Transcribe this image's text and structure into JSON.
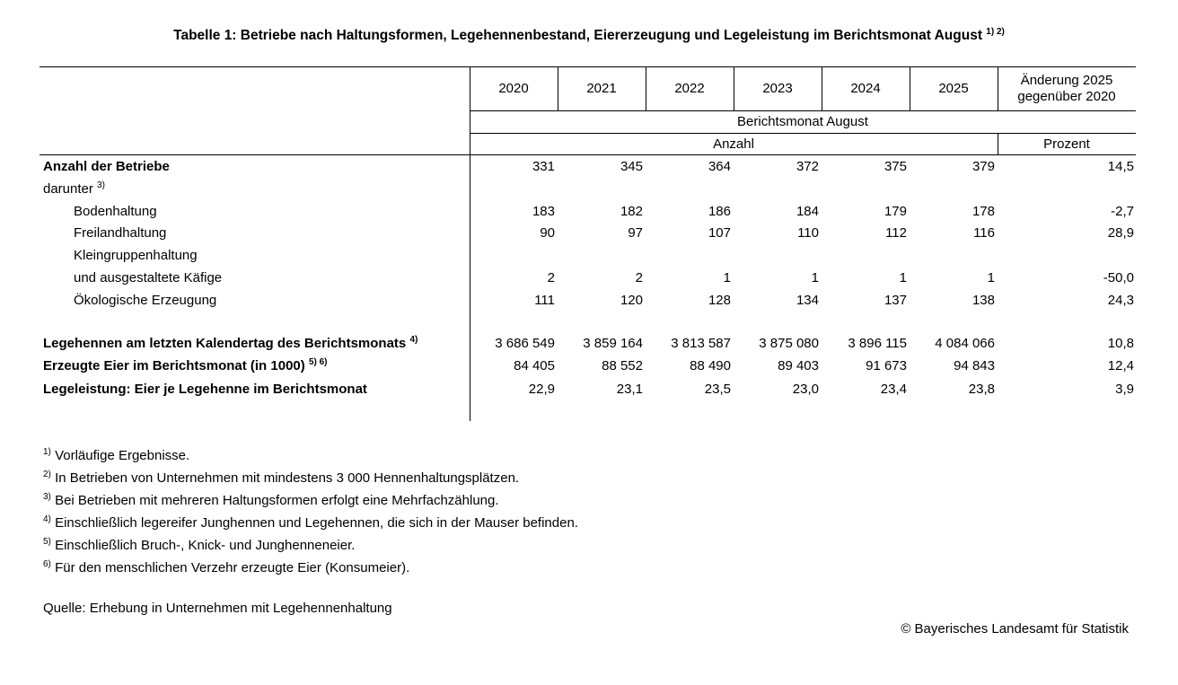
{
  "title": "Tabelle 1: Betriebe nach Haltungsformen, Legehennenbestand, Eiererzeugung und Legeleistung im Berichtsmonat August",
  "title_sup": "1) 2)",
  "header": {
    "years": [
      "2020",
      "2021",
      "2022",
      "2023",
      "2024",
      "2025"
    ],
    "change_line1": "Änderung 2025",
    "change_line2": "gegenüber 2020",
    "period": "Berichtsmonat August",
    "unit_count": "Anzahl",
    "unit_percent": "Prozent"
  },
  "rows": [
    {
      "label": "Anzahl der Betriebe",
      "sup": "",
      "bold": true,
      "indent": false,
      "values": [
        "331",
        "345",
        "364",
        "372",
        "375",
        "379"
      ],
      "change": "14,5"
    },
    {
      "label": "darunter",
      "sup": "3)",
      "bold": false,
      "indent": false,
      "values": [],
      "change": ""
    },
    {
      "label": "Bodenhaltung",
      "sup": "",
      "bold": false,
      "indent": true,
      "values": [
        "183",
        "182",
        "186",
        "184",
        "179",
        "178"
      ],
      "change": "-2,7"
    },
    {
      "label": "Freilandhaltung",
      "sup": "",
      "bold": false,
      "indent": true,
      "values": [
        "90",
        "97",
        "107",
        "110",
        "112",
        "116"
      ],
      "change": "28,9"
    },
    {
      "label": "Kleingruppenhaltung",
      "sup": "",
      "bold": false,
      "indent": true,
      "values": [],
      "change": ""
    },
    {
      "label": "und ausgestaltete Käfige",
      "sup": "",
      "bold": false,
      "indent": true,
      "values": [
        "2",
        "2",
        "1",
        "1",
        "1",
        "1"
      ],
      "change": "-50,0"
    },
    {
      "label": "Ökologische Erzeugung",
      "sup": "",
      "bold": false,
      "indent": true,
      "values": [
        "111",
        "120",
        "128",
        "134",
        "137",
        "138"
      ],
      "change": "24,3"
    },
    {
      "label": "Legehennen am letzten Kalendertag des Berichtsmonats",
      "sup": "4)",
      "bold": true,
      "indent": false,
      "values": [
        "3 686 549",
        "3 859 164",
        "3 813 587",
        "3 875 080",
        "3 896 115",
        "4 084 066"
      ],
      "change": "10,8"
    },
    {
      "label": "Erzeugte Eier im Berichtsmonat (in 1000)",
      "sup": "5) 6)",
      "bold": true,
      "indent": false,
      "values": [
        "84 405",
        "88 552",
        "88 490",
        "89 403",
        "91 673",
        "94 843"
      ],
      "change": "12,4"
    },
    {
      "label": "Legeleistung: Eier je Legehenne im Berichtsmonat",
      "sup": "",
      "bold": true,
      "indent": false,
      "values": [
        "22,9",
        "23,1",
        "23,5",
        "23,0",
        "23,4",
        "23,8"
      ],
      "change": "3,9"
    }
  ],
  "footnotes": [
    {
      "sup": "1)",
      "text": "Vorläufige Ergebnisse."
    },
    {
      "sup": "2)",
      "text": "In Betrieben von Unternehmen mit mindestens 3 000 Hennenhaltungsplätzen."
    },
    {
      "sup": "3)",
      "text": "Bei Betrieben mit mehreren Haltungsformen erfolgt eine Mehrfachzählung."
    },
    {
      "sup": "4)",
      "text": "Einschließlich legereifer Junghennen und Legehennen, die sich in der Mauser befinden."
    },
    {
      "sup": "5)",
      "text": "Einschließlich Bruch-, Knick- und Junghenneneier."
    },
    {
      "sup": "6)",
      "text": "Für den menschlichen Verzehr erzeugte Eier (Konsumeier)."
    }
  ],
  "source": "Quelle: Erhebung in Unternehmen mit Legehennenhaltung",
  "copyright": "© Bayerisches Landesamt für Statistik"
}
